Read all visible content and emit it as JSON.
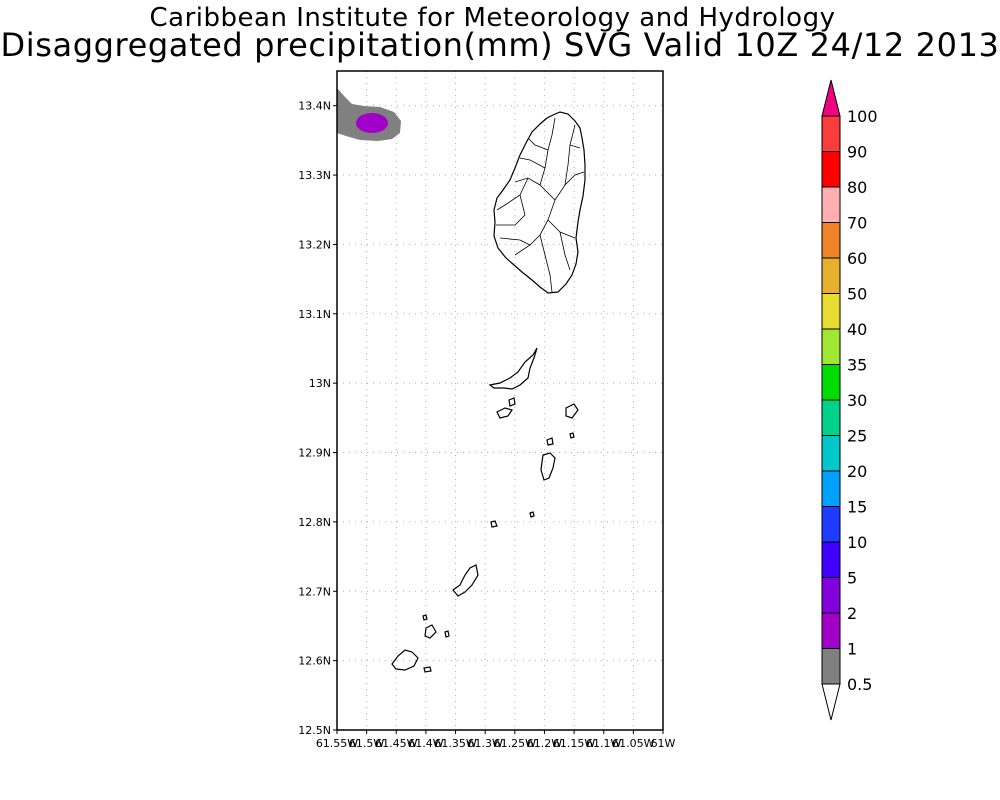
{
  "header": {
    "title": "Caribbean Institute for Meteorology and Hydrology",
    "subtitle": "Disaggregated precipitation(mm) SVG Valid 10Z 24/12 2013"
  },
  "map": {
    "lat_range": [
      12.5,
      13.45
    ],
    "lon_range": [
      -61.55,
      -61.0
    ],
    "lat_ticks": [
      "12.5N",
      "12.6N",
      "12.7N",
      "12.8N",
      "12.9N",
      "13N",
      "13.1N",
      "13.2N",
      "13.3N",
      "13.4N"
    ],
    "lon_ticks": [
      "61.55W",
      "61.5W",
      "61.45W",
      "61.4W",
      "61.35W",
      "61.3W",
      "61.25W",
      "61.2W",
      "61.15W",
      "61.1W",
      "61.05W",
      "61W"
    ],
    "grid": true,
    "coastline_color": "#000000",
    "precip_cell": {
      "lat": 13.37,
      "lon": -61.495,
      "outer_mm": 0.5,
      "inner_mm": 2,
      "outer_color": "#808080",
      "inner_color": "#a000c8"
    }
  },
  "colorbar": {
    "levels": [
      "0.5",
      "1",
      "2",
      "5",
      "10",
      "15",
      "20",
      "25",
      "30",
      "35",
      "40",
      "50",
      "60",
      "70",
      "80",
      "90",
      "100"
    ],
    "colors": [
      "#808080",
      "#a000c8",
      "#8200dc",
      "#4000ff",
      "#1e3cff",
      "#00a0ff",
      "#00c8c8",
      "#00d28c",
      "#00dc00",
      "#a0e632",
      "#e6dc32",
      "#e6af2d",
      "#f08228",
      "#ffafaf",
      "#ff0000",
      "#fa3c3c",
      "#f00082"
    ]
  }
}
